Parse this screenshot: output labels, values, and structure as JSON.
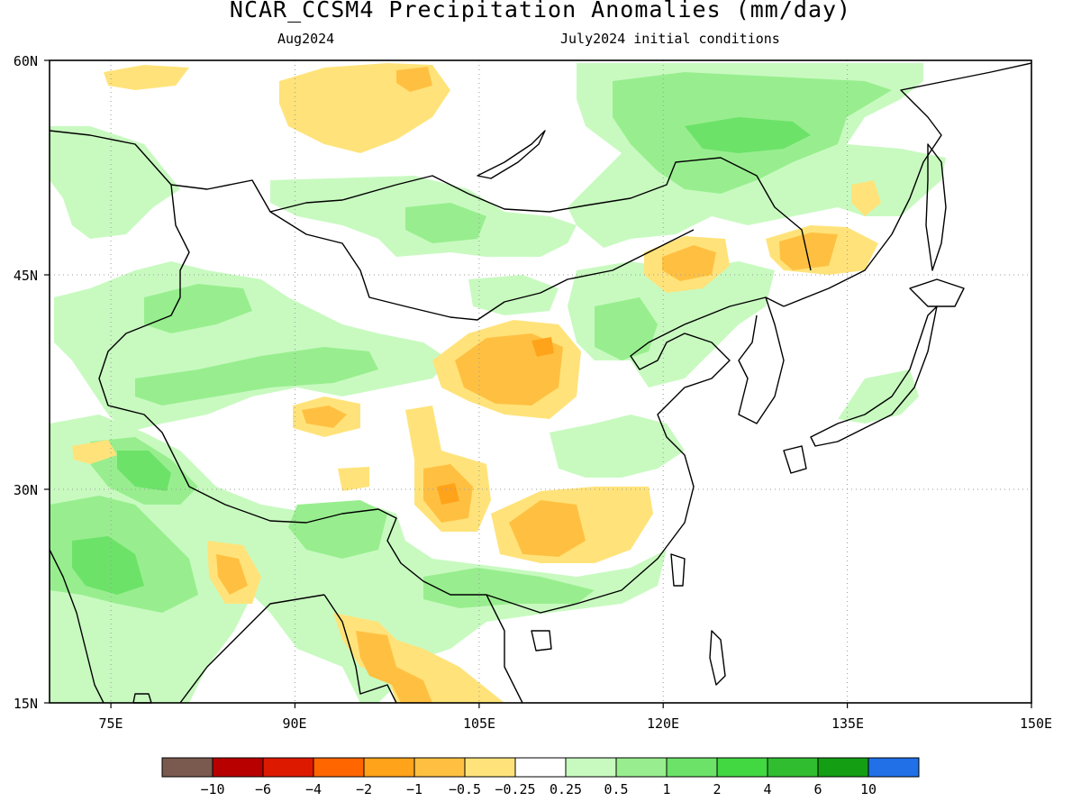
{
  "title": "NCAR_CCSM4 Precipitation Anomalies (mm/day)",
  "subtitle_left": "Aug2024",
  "subtitle_right": "July2024 initial conditions",
  "map": {
    "lon_range": [
      70,
      150
    ],
    "lat_range": [
      15,
      60
    ],
    "lon_ticks": [
      "75E",
      "90E",
      "105E",
      "120E",
      "135E",
      "150E"
    ],
    "lat_ticks": [
      "60N",
      "45N",
      "30N",
      "15N"
    ],
    "gridlines": "dotted"
  },
  "colorbar": {
    "colors": [
      "#7a5a4e",
      "#b80000",
      "#dd1a00",
      "#ff6600",
      "#ffa31a",
      "#ffc042",
      "#ffe37a",
      "#ffffff",
      "#c8fac0",
      "#98ee8e",
      "#6ce269",
      "#42d842",
      "#30bd30",
      "#139e13",
      "#2170e8"
    ],
    "labels": [
      "−10",
      "−6",
      "−4",
      "−2",
      "−1",
      "−0.5",
      "−0.25",
      "0.25",
      "0.5",
      "1",
      "2",
      "4",
      "6",
      "10"
    ]
  },
  "palette": {
    "wet_light": "#c8fac0",
    "wet_mid": "#98ee8e",
    "wet_strong": "#6ce269",
    "wet_max": "#42d842",
    "dry_light": "#ffe37a",
    "dry_mid": "#ffc042",
    "dry_strong": "#ffa31a"
  }
}
